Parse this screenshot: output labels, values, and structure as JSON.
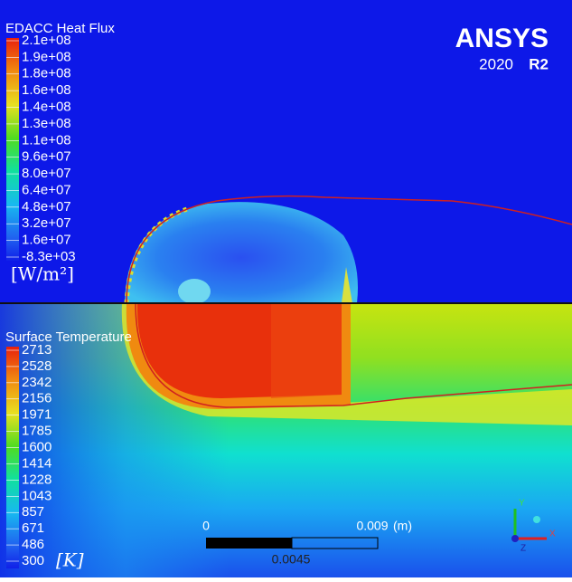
{
  "logo": {
    "name": "ANSYS",
    "version": "2020",
    "release": "R2"
  },
  "heat_flux_legend": {
    "title": "EDACC Heat Flux",
    "labels": [
      "2.1e+08",
      "1.9e+08",
      "1.8e+08",
      "1.6e+08",
      "1.4e+08",
      "1.3e+08",
      "1.1e+08",
      "9.6e+07",
      "8.0e+07",
      "6.4e+07",
      "4.8e+07",
      "3.2e+07",
      "1.6e+07",
      "-8.3e+03"
    ],
    "unit": "[W/m²]"
  },
  "temperature_legend": {
    "title": "Surface Temperature",
    "labels": [
      2713,
      2528,
      2342,
      2156,
      1971,
      1785,
      1600,
      1414,
      1228,
      1043,
      857,
      671,
      486,
      300
    ],
    "unit": "[K]"
  },
  "scale_bar": {
    "start": "0",
    "end": "0.009",
    "unit": "(m)",
    "middle": "0.0045"
  },
  "triad": {
    "y": "Y",
    "z": "Z",
    "x": "X"
  }
}
